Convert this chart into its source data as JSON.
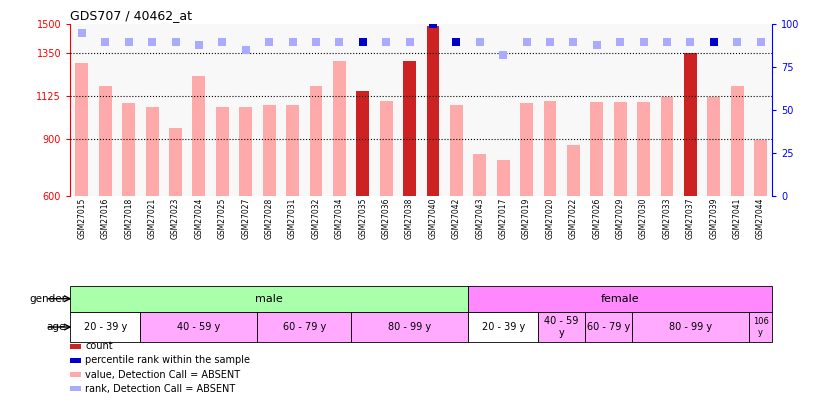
{
  "title": "GDS707 / 40462_at",
  "samples": [
    "GSM27015",
    "GSM27016",
    "GSM27018",
    "GSM27021",
    "GSM27023",
    "GSM27024",
    "GSM27025",
    "GSM27027",
    "GSM27028",
    "GSM27031",
    "GSM27032",
    "GSM27034",
    "GSM27035",
    "GSM27036",
    "GSM27038",
    "GSM27040",
    "GSM27042",
    "GSM27043",
    "GSM27017",
    "GSM27019",
    "GSM27020",
    "GSM27022",
    "GSM27026",
    "GSM27029",
    "GSM27030",
    "GSM27033",
    "GSM27037",
    "GSM27039",
    "GSM27041",
    "GSM27044"
  ],
  "bar_values": [
    1300,
    1175,
    1090,
    1065,
    960,
    1230,
    1070,
    1065,
    1080,
    1080,
    1175,
    1310,
    1150,
    1100,
    1310,
    1490,
    1080,
    820,
    790,
    1090,
    1100,
    870,
    1095,
    1095,
    1095,
    1120,
    1350,
    1120,
    1175,
    895
  ],
  "bar_colors": [
    "#ffaaaa",
    "#ffaaaa",
    "#ffaaaa",
    "#ffaaaa",
    "#ffaaaa",
    "#ffaaaa",
    "#ffaaaa",
    "#ffaaaa",
    "#ffaaaa",
    "#ffaaaa",
    "#ffaaaa",
    "#ffaaaa",
    "#cc2222",
    "#ffaaaa",
    "#cc2222",
    "#cc2222",
    "#ffaaaa",
    "#ffaaaa",
    "#ffaaaa",
    "#ffaaaa",
    "#ffaaaa",
    "#ffaaaa",
    "#ffaaaa",
    "#ffaaaa",
    "#ffaaaa",
    "#ffaaaa",
    "#cc2222",
    "#ffaaaa",
    "#ffaaaa",
    "#ffaaaa"
  ],
  "rank_values": [
    95,
    90,
    90,
    90,
    90,
    88,
    90,
    85,
    90,
    90,
    90,
    90,
    90,
    90,
    90,
    100,
    90,
    90,
    82,
    90,
    90,
    90,
    88,
    90,
    90,
    90,
    90,
    90,
    90,
    90
  ],
  "rank_colors": [
    "#aaaaff",
    "#aaaaff",
    "#aaaaff",
    "#aaaaff",
    "#aaaaff",
    "#aaaaff",
    "#aaaaff",
    "#aaaaff",
    "#aaaaff",
    "#aaaaff",
    "#aaaaff",
    "#aaaaff",
    "#0000cc",
    "#aaaaff",
    "#aaaaff",
    "#0000cc",
    "#0000cc",
    "#aaaaff",
    "#aaaaff",
    "#aaaaff",
    "#aaaaff",
    "#aaaaff",
    "#aaaaff",
    "#aaaaff",
    "#aaaaff",
    "#aaaaff",
    "#aaaaff",
    "#0000cc",
    "#aaaaff",
    "#aaaaff"
  ],
  "ylim_left": [
    600,
    1500
  ],
  "ylim_right": [
    0,
    100
  ],
  "yticks_left": [
    600,
    900,
    1125,
    1350,
    1500
  ],
  "yticks_right": [
    0,
    25,
    50,
    75,
    100
  ],
  "hlines": [
    900,
    1125,
    1350
  ],
  "gender_labels": [
    {
      "label": "male",
      "start": 0,
      "end": 17,
      "color": "#aaffaa"
    },
    {
      "label": "female",
      "start": 17,
      "end": 30,
      "color": "#ff88ff"
    }
  ],
  "age_groups": [
    {
      "label": "20 - 39 y",
      "start": 0,
      "end": 3,
      "color": "#ffffff"
    },
    {
      "label": "40 - 59 y",
      "start": 3,
      "end": 8,
      "color": "#ffaaff"
    },
    {
      "label": "60 - 79 y",
      "start": 8,
      "end": 12,
      "color": "#ffaaff"
    },
    {
      "label": "80 - 99 y",
      "start": 12,
      "end": 17,
      "color": "#ffaaff"
    },
    {
      "label": "20 - 39 y",
      "start": 17,
      "end": 20,
      "color": "#ffffff"
    },
    {
      "label": "40 - 59\ny",
      "start": 20,
      "end": 22,
      "color": "#ffaaff"
    },
    {
      "label": "60 - 79 y",
      "start": 22,
      "end": 24,
      "color": "#ffaaff"
    },
    {
      "label": "80 - 99 y",
      "start": 24,
      "end": 29,
      "color": "#ffaaff"
    },
    {
      "label": "106\ny",
      "start": 29,
      "end": 30,
      "color": "#ffaaff"
    }
  ],
  "bar_width": 0.55,
  "base_value": 600,
  "bg_color": "#ffffff",
  "plot_bg_color": "#f8f8f8",
  "rank_dot_size": 28
}
